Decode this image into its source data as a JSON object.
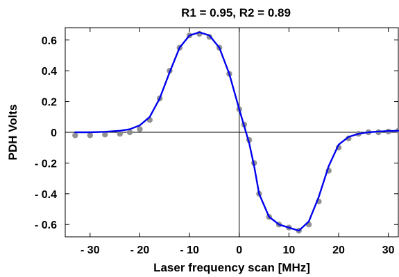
{
  "chart_data": {
    "type": "scatter",
    "title": "R1 = 0.95, R2 = 0.89",
    "xlabel": "Laser frequency scan [MHz]",
    "ylabel": "PDH Volts",
    "xlim": [
      -35,
      32
    ],
    "ylim": [
      -0.68,
      0.68
    ],
    "x_ticks": [
      {
        "value": -30,
        "label": "- 30"
      },
      {
        "value": -20,
        "label": "- 20"
      },
      {
        "value": -10,
        "label": "- 10"
      },
      {
        "value": 0,
        "label": "0"
      },
      {
        "value": 10,
        "label": "10"
      },
      {
        "value": 20,
        "label": "20"
      },
      {
        "value": 30,
        "label": "30"
      }
    ],
    "y_ticks": [
      {
        "value": 0.6,
        "label": "0.6"
      },
      {
        "value": 0.4,
        "label": "0.4"
      },
      {
        "value": 0.2,
        "label": "0.2"
      },
      {
        "value": 0,
        "label": "0"
      },
      {
        "value": -0.2,
        "label": "- 0.2"
      },
      {
        "value": -0.4,
        "label": "- 0.4"
      },
      {
        "value": -0.6,
        "label": "- 0.6"
      }
    ],
    "grid": false,
    "zero_lines": true,
    "series": [
      {
        "kind": "scatter",
        "color": "#8c8c8c",
        "x": [
          -33,
          -30,
          -27,
          -24,
          -22,
          -20,
          -18,
          -16,
          -14,
          -12,
          -10,
          -8,
          -6,
          -4,
          -2,
          0,
          1,
          2,
          3,
          4,
          6,
          8,
          10,
          12,
          14,
          16,
          18,
          20,
          22,
          24,
          26,
          28,
          30,
          32
        ],
        "y": [
          -0.02,
          -0.02,
          -0.015,
          -0.01,
          0.0,
          0.02,
          0.08,
          0.22,
          0.4,
          0.55,
          0.63,
          0.64,
          0.62,
          0.55,
          0.38,
          0.15,
          0.05,
          -0.05,
          -0.2,
          -0.4,
          -0.55,
          -0.6,
          -0.62,
          -0.64,
          -0.6,
          -0.45,
          -0.25,
          -0.1,
          -0.04,
          -0.01,
          0.0,
          0.0,
          0.005,
          0.01
        ]
      },
      {
        "kind": "line",
        "color": "#0000ee",
        "x": [
          -33,
          -30,
          -27,
          -24,
          -22,
          -20,
          -18,
          -16,
          -14,
          -12,
          -10,
          -8,
          -6,
          -4,
          -2,
          0,
          1,
          2,
          3,
          4,
          6,
          8,
          10,
          12,
          14,
          16,
          18,
          20,
          22,
          24,
          26,
          28,
          30,
          32
        ],
        "y": [
          0.0,
          0.0,
          0.003,
          0.01,
          0.02,
          0.045,
          0.1,
          0.22,
          0.39,
          0.55,
          0.63,
          0.65,
          0.63,
          0.55,
          0.38,
          0.15,
          0.04,
          -0.07,
          -0.22,
          -0.4,
          -0.55,
          -0.6,
          -0.62,
          -0.64,
          -0.58,
          -0.42,
          -0.22,
          -0.08,
          -0.03,
          -0.01,
          0.0,
          0.005,
          0.008,
          0.01
        ]
      }
    ]
  }
}
